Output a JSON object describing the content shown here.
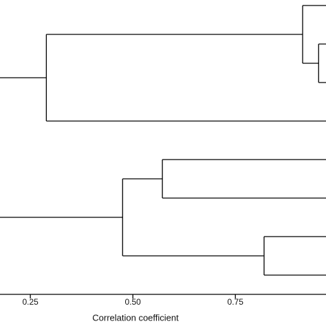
{
  "chart_data": {
    "type": "dendrogram",
    "x_label": "Correlation coefficient",
    "xlim": [
      0.176,
      0.971
    ],
    "xticks": [
      {
        "value": 0.25,
        "label": "0.25"
      },
      {
        "value": 0.5,
        "label": "0.50"
      },
      {
        "value": 0.75,
        "label": "0.75"
      }
    ],
    "color": "#000000",
    "trees": [
      {
        "height": 0.289,
        "children": [
          {
            "height": 0.914,
            "children": [
              {
                "height": 1
              },
              {
                "height": 0.953,
                "children": [
                  {
                    "height": 1
                  },
                  {
                    "height": 1
                  }
                ]
              }
            ]
          },
          {
            "height": 1
          }
        ]
      },
      {
        "height": 0.475,
        "children": [
          {
            "height": 0.572,
            "children": [
              {
                "height": 1
              },
              {
                "height": 1
              }
            ]
          },
          {
            "height": 0.82,
            "children": [
              {
                "height": 1
              },
              {
                "height": 1
              }
            ]
          }
        ]
      }
    ]
  }
}
